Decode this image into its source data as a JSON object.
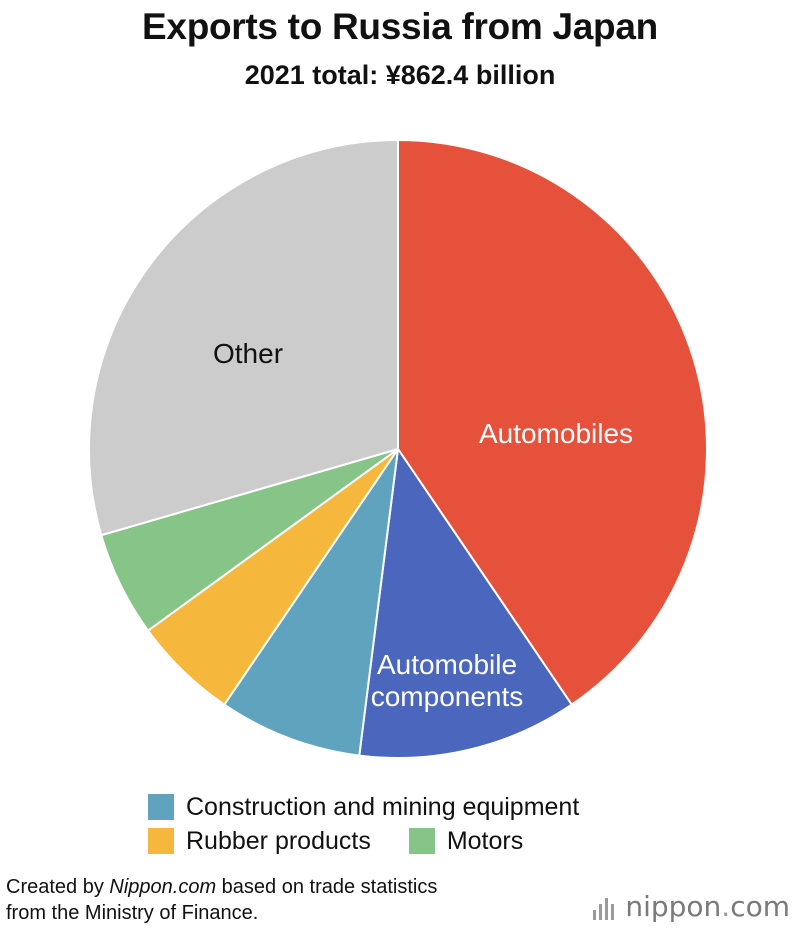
{
  "chart_data": {
    "type": "pie",
    "title": "Exports to Russia from Japan",
    "subtitle": "2021 total: ¥862.4 billion",
    "unit": "percent of total (estimated)",
    "start_angle_deg": 0,
    "direction": "clockwise",
    "slices": [
      {
        "name": "Automobiles",
        "value": 40.5,
        "color": "#e5513a",
        "label": "Automobiles",
        "label_color": "#ffffff"
      },
      {
        "name": "Automobile components",
        "value": 11.5,
        "color": "#4a66bd",
        "label": "Automobile\ncomponents",
        "label_color": "#ffffff"
      },
      {
        "name": "Construction and mining equipment",
        "value": 7.5,
        "color": "#5fa3bf",
        "label": "",
        "label_color": "#ffffff"
      },
      {
        "name": "Rubber products",
        "value": 5.5,
        "color": "#f5b83d",
        "label": "",
        "label_color": "#ffffff"
      },
      {
        "name": "Motors",
        "value": 5.5,
        "color": "#86c587",
        "label": "",
        "label_color": "#ffffff"
      },
      {
        "name": "Other",
        "value": 29.5,
        "color": "#cccccc",
        "label": "Other",
        "label_color": "#111111"
      }
    ],
    "legend": [
      {
        "name": "Construction and mining equipment",
        "color": "#5fa3bf"
      },
      {
        "name": "Rubber products",
        "color": "#f5b83d"
      },
      {
        "name": "Motors",
        "color": "#86c587"
      }
    ],
    "legend_placement": "bottom"
  },
  "footer": {
    "credit_prefix": "Created by ",
    "credit_source": "Nippon.com",
    "credit_suffix": " based on trade statistics",
    "credit_line2": "from the Ministry of Finance.",
    "logo_word": "nippon",
    "logo_dot": ".",
    "logo_tld": "com"
  }
}
